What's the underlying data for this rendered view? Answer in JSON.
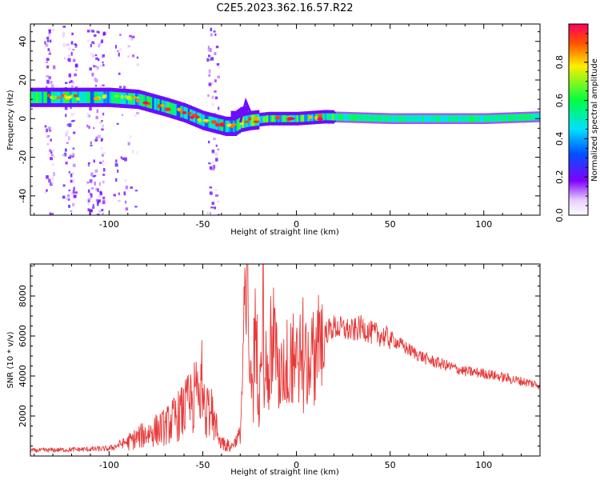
{
  "title": "C2E5.2023.362.16.57.R22",
  "chart_data": [
    {
      "type": "heatmap",
      "xlabel": "Height of straight line (km)",
      "ylabel": "Frequency (Hz)",
      "xlim": [
        -142,
        130
      ],
      "ylim": [
        -50,
        49
      ],
      "xticks": [
        -100,
        -50,
        0,
        50,
        100
      ],
      "yticks": [
        -40,
        -20,
        0,
        20,
        40
      ],
      "xtick_labels": [
        "-100",
        "-50",
        "0",
        "50",
        "100"
      ],
      "ytick_labels": [
        "-40",
        "-20",
        "0",
        "20",
        "40"
      ],
      "ridge": {
        "x": [
          -142,
          -120,
          -100,
          -85,
          -70,
          -60,
          -50,
          -42,
          -38,
          -33,
          -30,
          -25,
          -15,
          0,
          15,
          50,
          100,
          130
        ],
        "y": [
          11,
          11,
          11,
          10,
          6,
          3,
          -1,
          -3,
          -4,
          -4,
          -2,
          -1,
          0,
          0,
          1,
          0,
          0,
          1
        ]
      },
      "colorbar": {
        "label": "Normalized spectral amplitude",
        "range": [
          0.0,
          1.0
        ],
        "ticks": [
          0.0,
          0.2,
          0.4,
          0.6,
          0.8
        ],
        "tick_labels": [
          "0.0",
          "0.2",
          "0.4",
          "0.6",
          "0.8"
        ]
      }
    },
    {
      "type": "line",
      "xlabel": "Height of straight line (km)",
      "ylabel": "SNR (10 * v/v)",
      "xlim": [
        -142,
        130
      ],
      "ylim": [
        0,
        9600
      ],
      "xticks": [
        -100,
        -50,
        0,
        50,
        100
      ],
      "yticks": [
        2000,
        4000,
        6000,
        8000
      ],
      "xtick_labels": [
        "-100",
        "-50",
        "0",
        "50",
        "100"
      ],
      "ytick_labels": [
        "2000",
        "4000",
        "6000",
        "8000"
      ],
      "color": "#e83a3a",
      "series": [
        {
          "name": "SNR",
          "x": [
            -142,
            -120,
            -100,
            -90,
            -80,
            -70,
            -60,
            -55,
            -50,
            -45,
            -40,
            -35,
            -30,
            -28,
            -26,
            -24,
            -22,
            -20,
            -18,
            -15,
            -12,
            -10,
            -5,
            0,
            5,
            10,
            15,
            20,
            25,
            30,
            35,
            40,
            45,
            50,
            60,
            70,
            80,
            90,
            100,
            110,
            120,
            130
          ],
          "y": [
            300,
            350,
            400,
            800,
            1300,
            1700,
            2600,
            3300,
            4000,
            2200,
            800,
            500,
            1200,
            6500,
            9200,
            3000,
            7000,
            3200,
            8800,
            3500,
            7600,
            4100,
            5300,
            5600,
            5400,
            5600,
            6300,
            6600,
            6500,
            6400,
            6600,
            6300,
            6200,
            6000,
            5400,
            4900,
            4600,
            4300,
            4200,
            4000,
            3800,
            3600
          ]
        }
      ]
    }
  ]
}
